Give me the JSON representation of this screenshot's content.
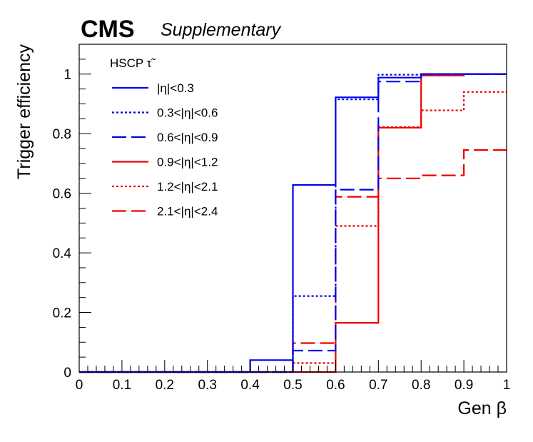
{
  "chart_data": {
    "type": "step",
    "title": "CMS",
    "subtitle": "Supplementary",
    "xlabel": "Gen β",
    "ylabel": "Trigger efficiency",
    "xlim": [
      0,
      1
    ],
    "ylim": [
      0,
      1.1
    ],
    "x_ticks": [
      "0",
      "0.1",
      "0.2",
      "0.3",
      "0.4",
      "0.5",
      "0.6",
      "0.7",
      "0.8",
      "0.9",
      "1"
    ],
    "y_ticks": [
      "0",
      "0.2",
      "0.4",
      "0.6",
      "0.8",
      "1"
    ],
    "legend_header": "HSCP τ̃",
    "legend_position": "top-left",
    "bin_edges": [
      0,
      0.1,
      0.2,
      0.3,
      0.4,
      0.5,
      0.6,
      0.7,
      0.8,
      0.9,
      1.0
    ],
    "series": [
      {
        "name": "|η|<0.3",
        "color": "#0000ee",
        "style": "solid",
        "values": [
          0,
          0,
          0,
          0,
          0.04,
          0.628,
          0.922,
          0.988,
          1.0,
          1.0
        ]
      },
      {
        "name": "0.3<|η|<0.6",
        "color": "#0000ee",
        "style": "dotted",
        "values": [
          0,
          0,
          0,
          0,
          0,
          0.255,
          0.915,
          0.998,
          1.0,
          1.0
        ]
      },
      {
        "name": "0.6<|η|<0.9",
        "color": "#0000ee",
        "style": "longdash",
        "values": [
          0,
          0,
          0,
          0,
          0,
          0.072,
          0.612,
          0.975,
          1.0,
          1.0
        ]
      },
      {
        "name": "0.9<|η|<1.2",
        "color": "#ee0000",
        "style": "solid",
        "values": [
          0,
          0,
          0,
          0,
          0,
          0,
          0.165,
          0.82,
          0.995,
          1.0
        ]
      },
      {
        "name": "1.2<|η|<2.1",
        "color": "#ee0000",
        "style": "dotted",
        "values": [
          0,
          0,
          0,
          0,
          0,
          0.03,
          0.49,
          0.822,
          0.878,
          0.94
        ]
      },
      {
        "name": "2.1<|η|<2.4",
        "color": "#ee0000",
        "style": "longdash",
        "values": [
          0,
          0,
          0,
          0,
          0,
          0.097,
          0.588,
          0.65,
          0.66,
          0.745
        ]
      }
    ]
  }
}
